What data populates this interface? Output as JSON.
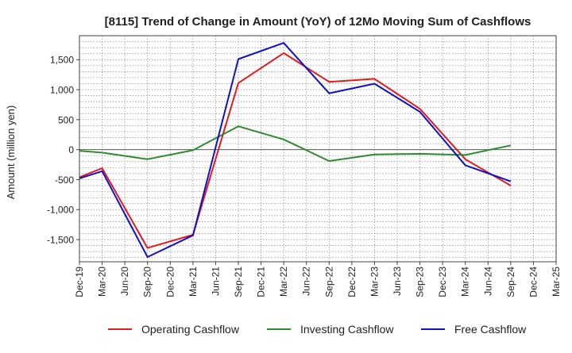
{
  "chart_data": {
    "type": "line",
    "title": "[8115]  Trend of Change in Amount (YoY) of 12Mo Moving Sum of Cashflows",
    "xlabel": "",
    "ylabel": "Amount (million yen)",
    "ylim": [
      -1870,
      1900
    ],
    "yticks": [
      -1500,
      -1000,
      -500,
      0,
      500,
      1000,
      1500
    ],
    "ytick_labels": [
      "-1,500",
      "-1,000",
      "-500",
      "0",
      "500",
      "1,000",
      "1,500"
    ],
    "grid": true,
    "legend_position": "bottom",
    "categories": [
      "Dec-19",
      "Mar-20",
      "Jun-20",
      "Sep-20",
      "Dec-20",
      "Mar-21",
      "Jun-21",
      "Sep-21",
      "Dec-21",
      "Mar-22",
      "Jun-22",
      "Sep-22",
      "Dec-22",
      "Mar-23",
      "Jun-23",
      "Sep-23",
      "Dec-23",
      "Mar-24",
      "Jun-24",
      "Sep-24",
      "Dec-24",
      "Mar-25"
    ],
    "series": [
      {
        "name": "Operating Cashflow",
        "color": "#e41a1c",
        "values": [
          -460,
          -310,
          null,
          -1640,
          null,
          -1420,
          null,
          1110,
          null,
          1610,
          null,
          1130,
          null,
          1180,
          null,
          680,
          null,
          -160,
          null,
          -600,
          null,
          null
        ]
      },
      {
        "name": "Investing Cashflow",
        "color": "#2e8b2e",
        "values": [
          -20,
          -50,
          null,
          -160,
          null,
          -10,
          null,
          390,
          null,
          170,
          null,
          -190,
          null,
          -80,
          null,
          -70,
          null,
          -90,
          null,
          70,
          null,
          null
        ]
      },
      {
        "name": "Free Cashflow",
        "color": "#1010cc",
        "values": [
          -480,
          -360,
          null,
          -1790,
          null,
          -1430,
          null,
          1510,
          null,
          1780,
          null,
          940,
          null,
          1100,
          null,
          630,
          null,
          -260,
          null,
          -530,
          null,
          null
        ]
      }
    ]
  }
}
